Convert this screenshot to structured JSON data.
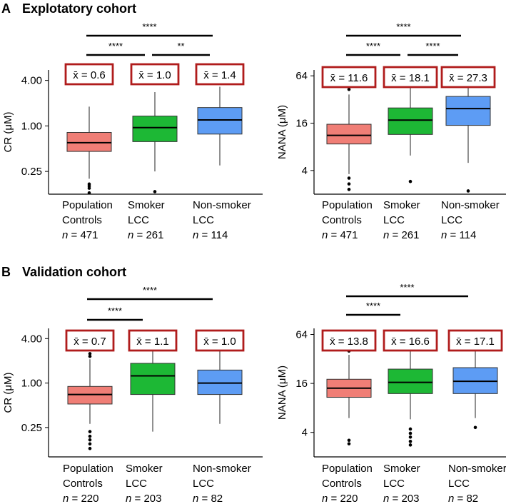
{
  "colors": {
    "population": "#f07e76",
    "smoker": "#1db835",
    "nonsmoker": "#5d9cf4",
    "mean_box": "#b01c1c"
  },
  "sections": [
    {
      "letter": "A",
      "title": "Explotatory cohort"
    },
    {
      "letter": "B",
      "title": "Validation cohort"
    }
  ],
  "chart_data": [
    {
      "id": "A-CR",
      "type": "box",
      "ylabel": "CR (μM)",
      "yscale": "log2",
      "ylim": [
        0.125,
        5.5
      ],
      "yticks": [
        {
          "v": 0.25,
          "label": "0.25"
        },
        {
          "v": 1,
          "label": "1.00"
        },
        {
          "v": 4,
          "label": "4.00"
        }
      ],
      "groups": [
        {
          "name1": "Population",
          "name2": "Controls",
          "n_label": "n",
          "n_value": "= 471",
          "mean_label": "x̄ = 0.6",
          "color": "population",
          "min": 0.2,
          "q1": 0.46,
          "median": 0.6,
          "q3": 0.82,
          "max": 1.8,
          "outliers": [
            0.15,
            0.16,
            0.17,
            0.13
          ]
        },
        {
          "name1": "Smoker",
          "name2": "LCC",
          "n_label": "n",
          "n_value": "= 261",
          "mean_label": "x̄ = 1.0",
          "color": "smoker",
          "min": 0.25,
          "q1": 0.62,
          "median": 0.95,
          "q3": 1.35,
          "max": 2.8,
          "outliers": [
            0.135
          ]
        },
        {
          "name1": "Non-smoker",
          "name2": "LCC",
          "n_label": "n",
          "n_value": "= 114",
          "mean_label": "x̄ = 1.4",
          "color": "nonsmoker",
          "min": 0.3,
          "q1": 0.78,
          "median": 1.2,
          "q3": 1.75,
          "max": 3.3,
          "outliers": []
        }
      ],
      "brackets": [
        {
          "from": 0,
          "to": 2,
          "label": "****",
          "level": 2
        },
        {
          "from": 0,
          "to": 1,
          "label": "****",
          "level": 1
        },
        {
          "from": 1,
          "to": 2,
          "label": "**",
          "level": 1
        }
      ]
    },
    {
      "id": "A-NANA",
      "type": "box",
      "ylabel": "NANA (μM)",
      "yscale": "log2",
      "ylim": [
        2,
        76
      ],
      "yticks": [
        {
          "v": 4,
          "label": "4"
        },
        {
          "v": 16,
          "label": "16"
        },
        {
          "v": 64,
          "label": "64"
        }
      ],
      "groups": [
        {
          "name1": "Population",
          "name2": "Controls",
          "n_label": "n",
          "n_value": "= 471",
          "mean_label": "x̄ = 11.6",
          "color": "population",
          "min": 3.6,
          "q1": 8.7,
          "median": 11.2,
          "q3": 15.5,
          "max": 37,
          "outliers": [
            3.2,
            2.7,
            2.3,
            43
          ]
        },
        {
          "name1": "Smoker",
          "name2": "LCC",
          "n_label": "n",
          "n_value": "= 261",
          "mean_label": "x̄ = 18.1",
          "color": "smoker",
          "min": 6.2,
          "q1": 11.5,
          "median": 17.5,
          "q3": 25,
          "max": 48,
          "outliers": [
            2.9
          ]
        },
        {
          "name1": "Non-smoker",
          "name2": "LCC",
          "n_label": "n",
          "n_value": "= 114",
          "mean_label": "x̄ = 27.3",
          "color": "nonsmoker",
          "min": 5,
          "q1": 15,
          "median": 24.5,
          "q3": 35,
          "max": 56,
          "outliers": [
            2.2
          ]
        }
      ],
      "brackets": [
        {
          "from": 0,
          "to": 2,
          "label": "****",
          "level": 2
        },
        {
          "from": 0,
          "to": 1,
          "label": "****",
          "level": 1
        },
        {
          "from": 1,
          "to": 2,
          "label": "****",
          "level": 1
        }
      ]
    },
    {
      "id": "B-CR",
      "type": "box",
      "ylabel": "CR (μM)",
      "yscale": "log2",
      "ylim": [
        0.1,
        5.5
      ],
      "yticks": [
        {
          "v": 0.25,
          "label": "0.25"
        },
        {
          "v": 1,
          "label": "1.00"
        },
        {
          "v": 4,
          "label": "4.00"
        }
      ],
      "groups": [
        {
          "name1": "Population",
          "name2": "Controls",
          "n_label": "n",
          "n_value": "= 220",
          "mean_label": "x̄ = 0.7",
          "color": "population",
          "min": 0.28,
          "q1": 0.52,
          "median": 0.7,
          "q3": 0.9,
          "max": 2.1,
          "outliers": [
            2.3,
            2.5,
            0.22,
            0.19,
            0.17,
            0.15,
            0.13
          ]
        },
        {
          "name1": "Smoker",
          "name2": "LCC",
          "n_label": "n",
          "n_value": "= 203",
          "mean_label": "x̄ = 1.1",
          "color": "smoker",
          "min": 0.22,
          "q1": 0.7,
          "median": 1.25,
          "q3": 1.85,
          "max": 3.2,
          "outliers": []
        },
        {
          "name1": "Non-smoker",
          "name2": "LCC",
          "n_label": "n",
          "n_value": "= 82",
          "mean_label": "x̄ = 1.0",
          "color": "nonsmoker",
          "min": 0.28,
          "q1": 0.7,
          "median": 1.0,
          "q3": 1.5,
          "max": 3.2,
          "outliers": []
        }
      ],
      "brackets": [
        {
          "from": 0,
          "to": 2,
          "label": "****",
          "level": 2
        },
        {
          "from": 0,
          "to": 1,
          "label": "****",
          "level": 1
        }
      ]
    },
    {
      "id": "B-NANA",
      "type": "box",
      "ylabel": "NANA (μM)",
      "yscale": "log2",
      "ylim": [
        2,
        76
      ],
      "yticks": [
        {
          "v": 4,
          "label": "4"
        },
        {
          "v": 16,
          "label": "16"
        },
        {
          "v": 64,
          "label": "64"
        }
      ],
      "groups": [
        {
          "name1": "Population",
          "name2": "Controls",
          "n_label": "n",
          "n_value": "= 220",
          "mean_label": "x̄ = 13.8",
          "color": "population",
          "min": 6,
          "q1": 10.8,
          "median": 14,
          "q3": 18,
          "max": 36,
          "outliers": [
            40,
            44,
            3.2,
            2.9
          ]
        },
        {
          "name1": "Smoker",
          "name2": "LCC",
          "n_label": "n",
          "n_value": "= 203",
          "mean_label": "x̄ = 16.6",
          "color": "smoker",
          "min": 5.8,
          "q1": 12,
          "median": 16.5,
          "q3": 24,
          "max": 46,
          "outliers": [
            4.4,
            3.9,
            3.5,
            3.1,
            2.8
          ]
        },
        {
          "name1": "Non-smoker",
          "name2": "LCC",
          "n_label": "n",
          "n_value": "= 82",
          "mean_label": "x̄ = 17.1",
          "color": "nonsmoker",
          "min": 6,
          "q1": 12,
          "median": 17,
          "q3": 25,
          "max": 50,
          "outliers": [
            4.6
          ]
        }
      ],
      "brackets": [
        {
          "from": 0,
          "to": 2,
          "label": "****",
          "level": 2
        },
        {
          "from": 0,
          "to": 1,
          "label": "****",
          "level": 1
        }
      ]
    }
  ]
}
